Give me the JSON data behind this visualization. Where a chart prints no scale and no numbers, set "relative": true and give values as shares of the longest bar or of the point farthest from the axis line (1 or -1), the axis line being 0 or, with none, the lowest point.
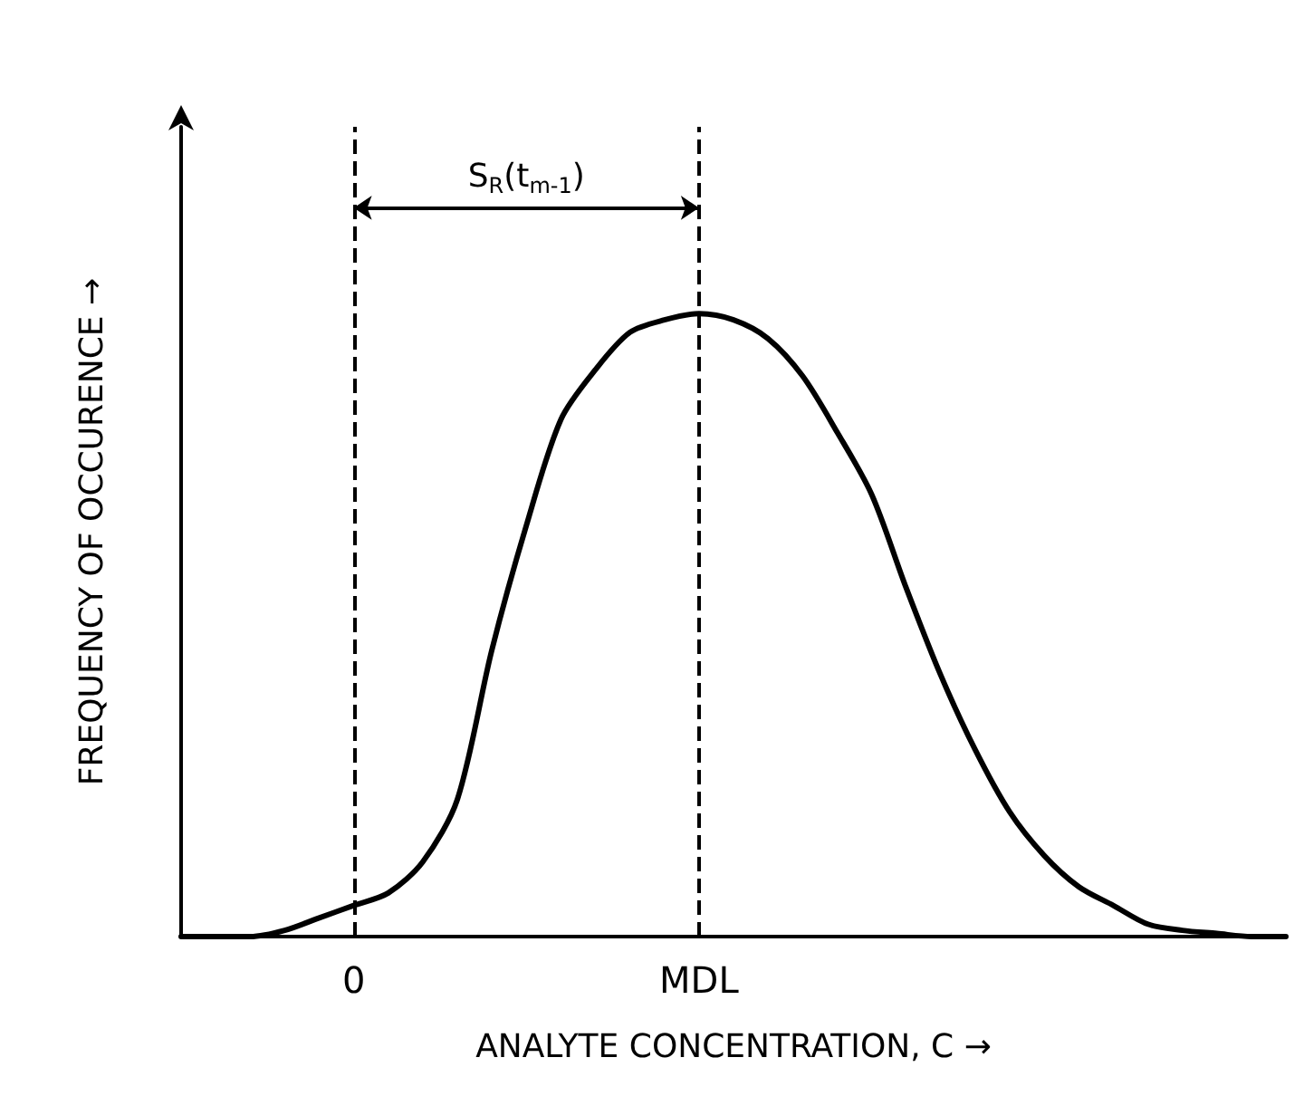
{
  "chart_data": {
    "type": "line",
    "relative": true,
    "xlabel": "ANALYTE CONCENTRATION, C →",
    "ylabel": "FREQUENCY OF OCCURENCE →",
    "categories": [
      null,
      null,
      null,
      null,
      null,
      "0",
      null,
      null,
      null,
      null,
      null,
      null,
      null,
      null,
      null,
      "MDL",
      null,
      null,
      null,
      null,
      null,
      null,
      null,
      null,
      null,
      null,
      null,
      null,
      null,
      null,
      null,
      null,
      null
    ],
    "series": [
      {
        "color": "#000000",
        "values": [
          0,
          0,
          0,
          0.01,
          0.03,
          0.05,
          0.07,
          0.12,
          0.22,
          0.46,
          0.66,
          0.83,
          0.91,
          0.97,
          0.99,
          1,
          0.99,
          0.96,
          0.9,
          0.81,
          0.71,
          0.56,
          0.42,
          0.3,
          0.2,
          0.13,
          0.08,
          0.05,
          0.02,
          0.01,
          0.005,
          0,
          0
        ]
      }
    ],
    "ref_lines": [
      {
        "axis": "x",
        "value": "0",
        "line_style": "dashed",
        "color": "#000000"
      },
      {
        "axis": "x",
        "value": "MDL",
        "line_style": "dashed",
        "color": "#000000"
      }
    ],
    "annotations": [
      "S$_{R}$(t$_{m-1}$)"
    ],
    "marker": "none",
    "line_style": "solid",
    "grid": false
  }
}
